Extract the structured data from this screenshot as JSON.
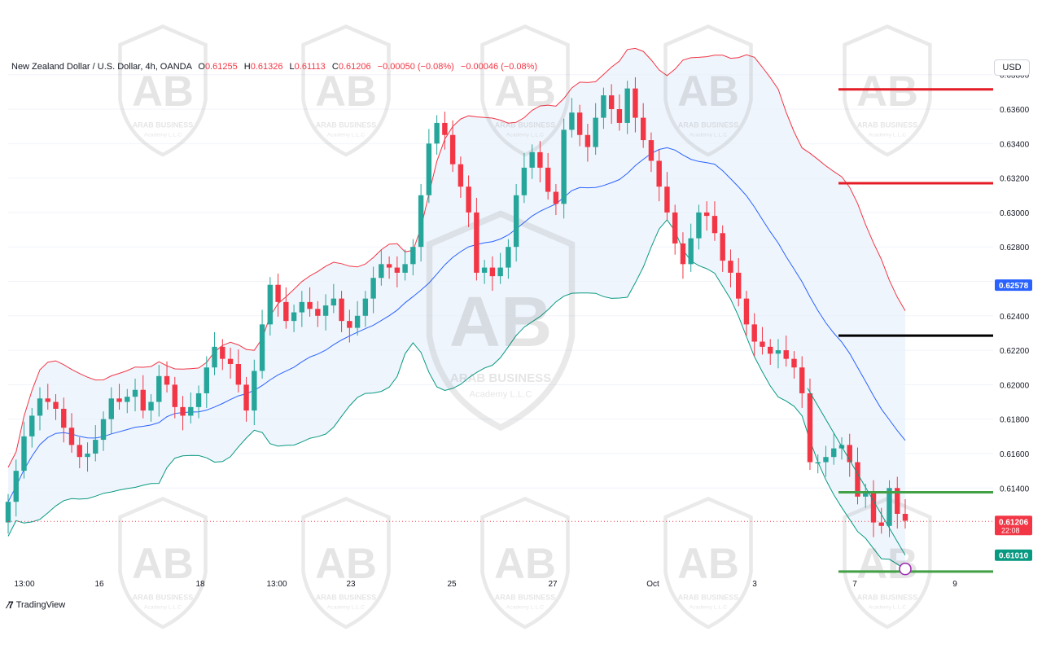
{
  "header": {
    "symbol": "New Zealand Dollar / U.S. Dollar, 4h, OANDA",
    "o_label": "O",
    "o_value": "0.61255",
    "h_label": "H",
    "h_value": "0.61326",
    "l_label": "L",
    "l_value": "0.61113",
    "c_label": "C",
    "c_value": "0.61206",
    "change": "−0.00050 (−0.08%)",
    "change2": "−0.00046 (−0.08%)"
  },
  "currency_button": "USD",
  "branding": {
    "logo_text": "TradingView"
  },
  "watermark": {
    "line1": "ARAB BUSINESS",
    "line2": "Academy L.L.C",
    "monogram": "AB"
  },
  "colors": {
    "up": "#26a69a",
    "down": "#f23645",
    "basis": "#2962ff",
    "upper_band": "#f23645",
    "lower_band": "#089981",
    "band_fill": "#e8f1fb",
    "resistance": "#e31c25",
    "support": "#43a047",
    "pivot": "#000000"
  },
  "chart_data": {
    "type": "candlestick",
    "title": "New Zealand Dollar / U.S. Dollar, 4h, OANDA",
    "ylim": [
      0.609,
      0.6395
    ],
    "y_ticks": [
      "0.63800",
      "0.63600",
      "0.63400",
      "0.63200",
      "0.63000",
      "0.62800",
      "0.62400",
      "0.62200",
      "0.62000",
      "0.61800",
      "0.61600",
      "0.61400"
    ],
    "x_ticks": [
      "13:00",
      "16",
      "18",
      "13:00",
      "23",
      "25",
      "27",
      "Oct",
      "3",
      "7",
      "9"
    ],
    "price_labels": [
      {
        "text": "0.62578",
        "value": 0.62578,
        "color": "#2962ff"
      },
      {
        "text": "0.61206",
        "value": 0.61206,
        "color": "#f23645",
        "extra": "22:08"
      },
      {
        "text": "0.61010",
        "value": 0.6101,
        "color": "#089981"
      }
    ],
    "horizontal_levels": [
      {
        "name": "resistance-2",
        "value": 0.63715,
        "color": "#e31c25"
      },
      {
        "name": "resistance-1",
        "value": 0.6317,
        "color": "#e31c25"
      },
      {
        "name": "pivot",
        "value": 0.62285,
        "color": "#000000"
      },
      {
        "name": "support-1",
        "value": 0.61375,
        "color": "#43a047"
      },
      {
        "name": "support-2",
        "value": 0.60915,
        "color": "#43a047"
      }
    ],
    "current_price": 0.61206,
    "closes": [
      0.6132,
      0.615,
      0.617,
      0.6182,
      0.6192,
      0.619,
      0.6186,
      0.6175,
      0.6165,
      0.6158,
      0.616,
      0.6168,
      0.618,
      0.6192,
      0.619,
      0.6193,
      0.6197,
      0.6185,
      0.619,
      0.6205,
      0.62,
      0.6187,
      0.6182,
      0.6187,
      0.6195,
      0.621,
      0.6222,
      0.6215,
      0.6212,
      0.62,
      0.6185,
      0.6208,
      0.6235,
      0.6258,
      0.6248,
      0.6237,
      0.6242,
      0.6248,
      0.6244,
      0.624,
      0.6246,
      0.625,
      0.6237,
      0.6233,
      0.624,
      0.625,
      0.6262,
      0.627,
      0.6268,
      0.6265,
      0.627,
      0.628,
      0.631,
      0.634,
      0.6352,
      0.6345,
      0.6328,
      0.6315,
      0.63,
      0.6265,
      0.6268,
      0.6263,
      0.6268,
      0.628,
      0.631,
      0.6326,
      0.6335,
      0.6326,
      0.6312,
      0.6305,
      0.6348,
      0.6358,
      0.6345,
      0.6338,
      0.6355,
      0.6368,
      0.636,
      0.6352,
      0.6372,
      0.6355,
      0.6342,
      0.633,
      0.6315,
      0.63,
      0.6282,
      0.627,
      0.6285,
      0.63,
      0.6298,
      0.6288,
      0.6272,
      0.6265,
      0.625,
      0.6235,
      0.6225,
      0.6222,
      0.6218,
      0.622,
      0.6215,
      0.621,
      0.6195,
      0.6155,
      0.6155,
      0.6158,
      0.6163,
      0.6165,
      0.6155,
      0.6135,
      0.6138,
      0.612,
      0.6118,
      0.614,
      0.6125,
      0.6121
    ]
  }
}
